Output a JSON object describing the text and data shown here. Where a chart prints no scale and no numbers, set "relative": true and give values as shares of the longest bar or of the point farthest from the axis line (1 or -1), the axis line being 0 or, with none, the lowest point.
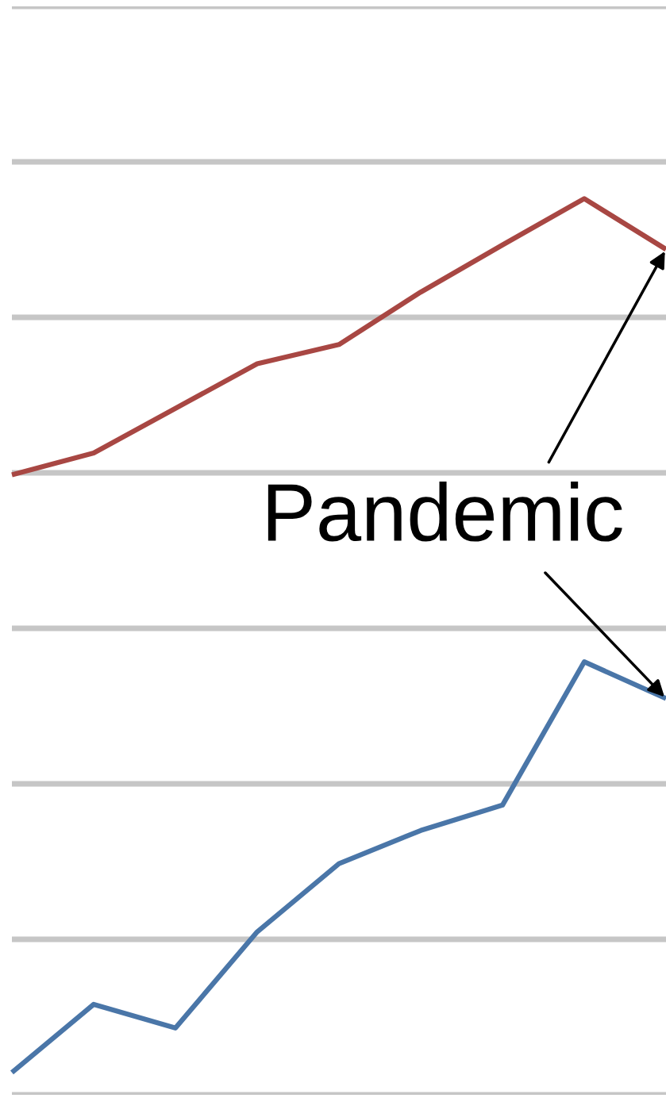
{
  "chart_data": {
    "type": "line",
    "relative": true,
    "grid": "y",
    "marker": "none",
    "line_style": "solid",
    "categories": [
      null,
      null,
      null,
      null,
      null,
      null,
      null,
      null,
      null
    ],
    "series": [
      {
        "color": "#a84743",
        "values": [
          0.684,
          0.709,
          0.76,
          0.811,
          0.833,
          0.893,
          0.947,
          1,
          0.942
        ]
      },
      {
        "color": "#4a76a8",
        "values": [
          0,
          0.078,
          0.051,
          0.161,
          0.239,
          0.277,
          0.306,
          0.47,
          0.428
        ]
      }
    ],
    "annotations": [
      "Pandemic"
    ]
  }
}
